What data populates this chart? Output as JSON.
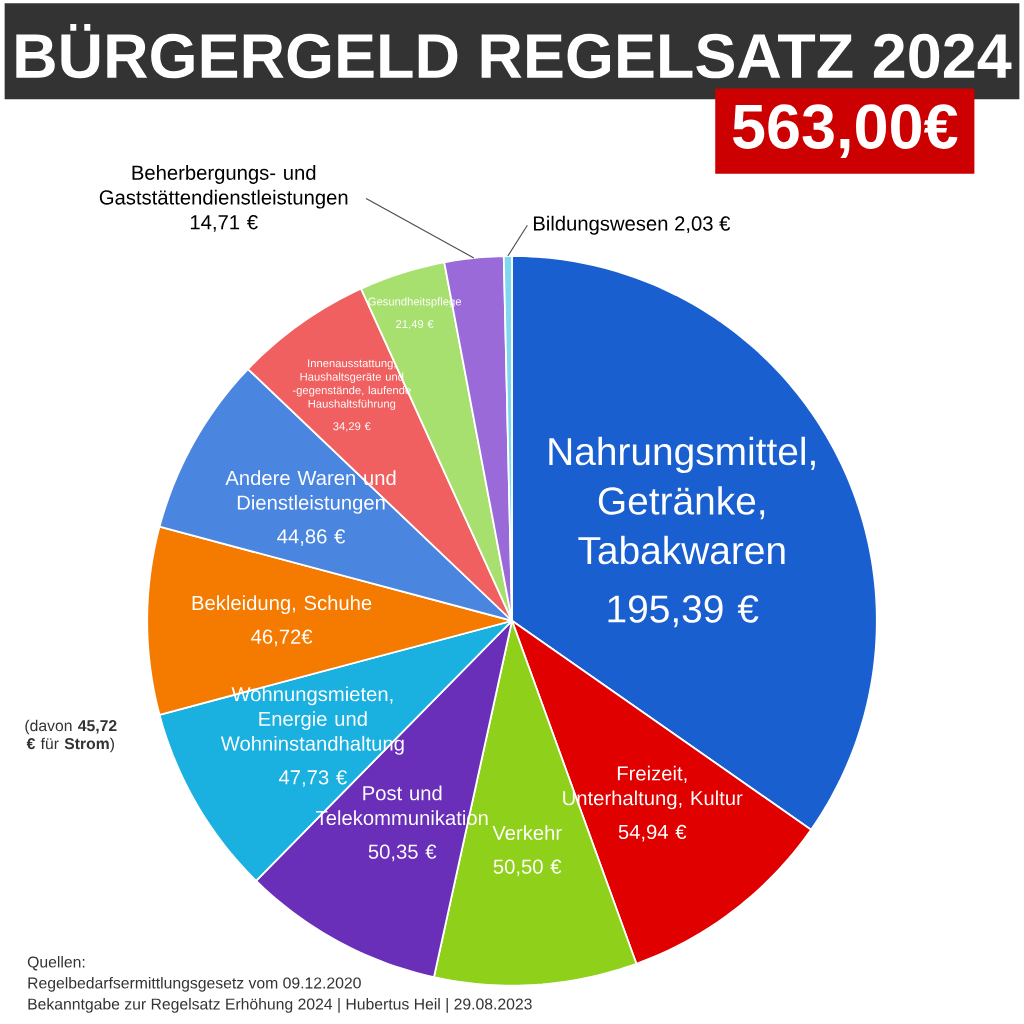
{
  "chart_data": {
    "type": "pie",
    "title": "BÜRGERGELD REGELSATZ 2024",
    "subtitle": "563,00€",
    "categories": [
      "Nahrungsmittel, Getränke, Tabakwaren",
      "Freizeit, Unterhaltung, Kultur",
      "Verkehr",
      "Post und Telekommunikation",
      "Wohnungsmieten, Energie und Wohninstandhaltung",
      "Bekleidung, Schuhe",
      "Andere Waren und Dienstleistungen",
      "Innenausstattung, Haushaltsgeräte und -gegenstände, laufende Haushaltsführung",
      "Gesundheitspflege",
      "Beherbergungs- und Gaststättendienstleistungen",
      "Bildungswesen"
    ],
    "values": [
      195.39,
      54.94,
      50.5,
      50.35,
      47.73,
      46.72,
      44.86,
      34.29,
      21.49,
      14.71,
      2.03
    ],
    "value_labels": [
      "195,39 €",
      "54,94 €",
      "50,50 €",
      "50,35 €",
      "47,73 €",
      "46,72€",
      "44,86 €",
      "34,29 €",
      "21,49 €",
      "14,71 €",
      "2,03 €"
    ],
    "colors": [
      "#1a5fd0",
      "#e00000",
      "#8fd11a",
      "#6a2fb8",
      "#1ab0e0",
      "#f57a00",
      "#4a86e0",
      "#f06060",
      "#a8e070",
      "#9a6ad8",
      "#7fd8f0"
    ],
    "annotations": [
      "Quellen:",
      "Regelbedarfsermittlungsgesetz vom 09.12.2020",
      "Bekanntgabe zur Regelsatz Erhöhung 2024 | Hubertus Heil | 29.08.2023",
      "(davon **45,72 €** für **Strom**)"
    ]
  }
}
